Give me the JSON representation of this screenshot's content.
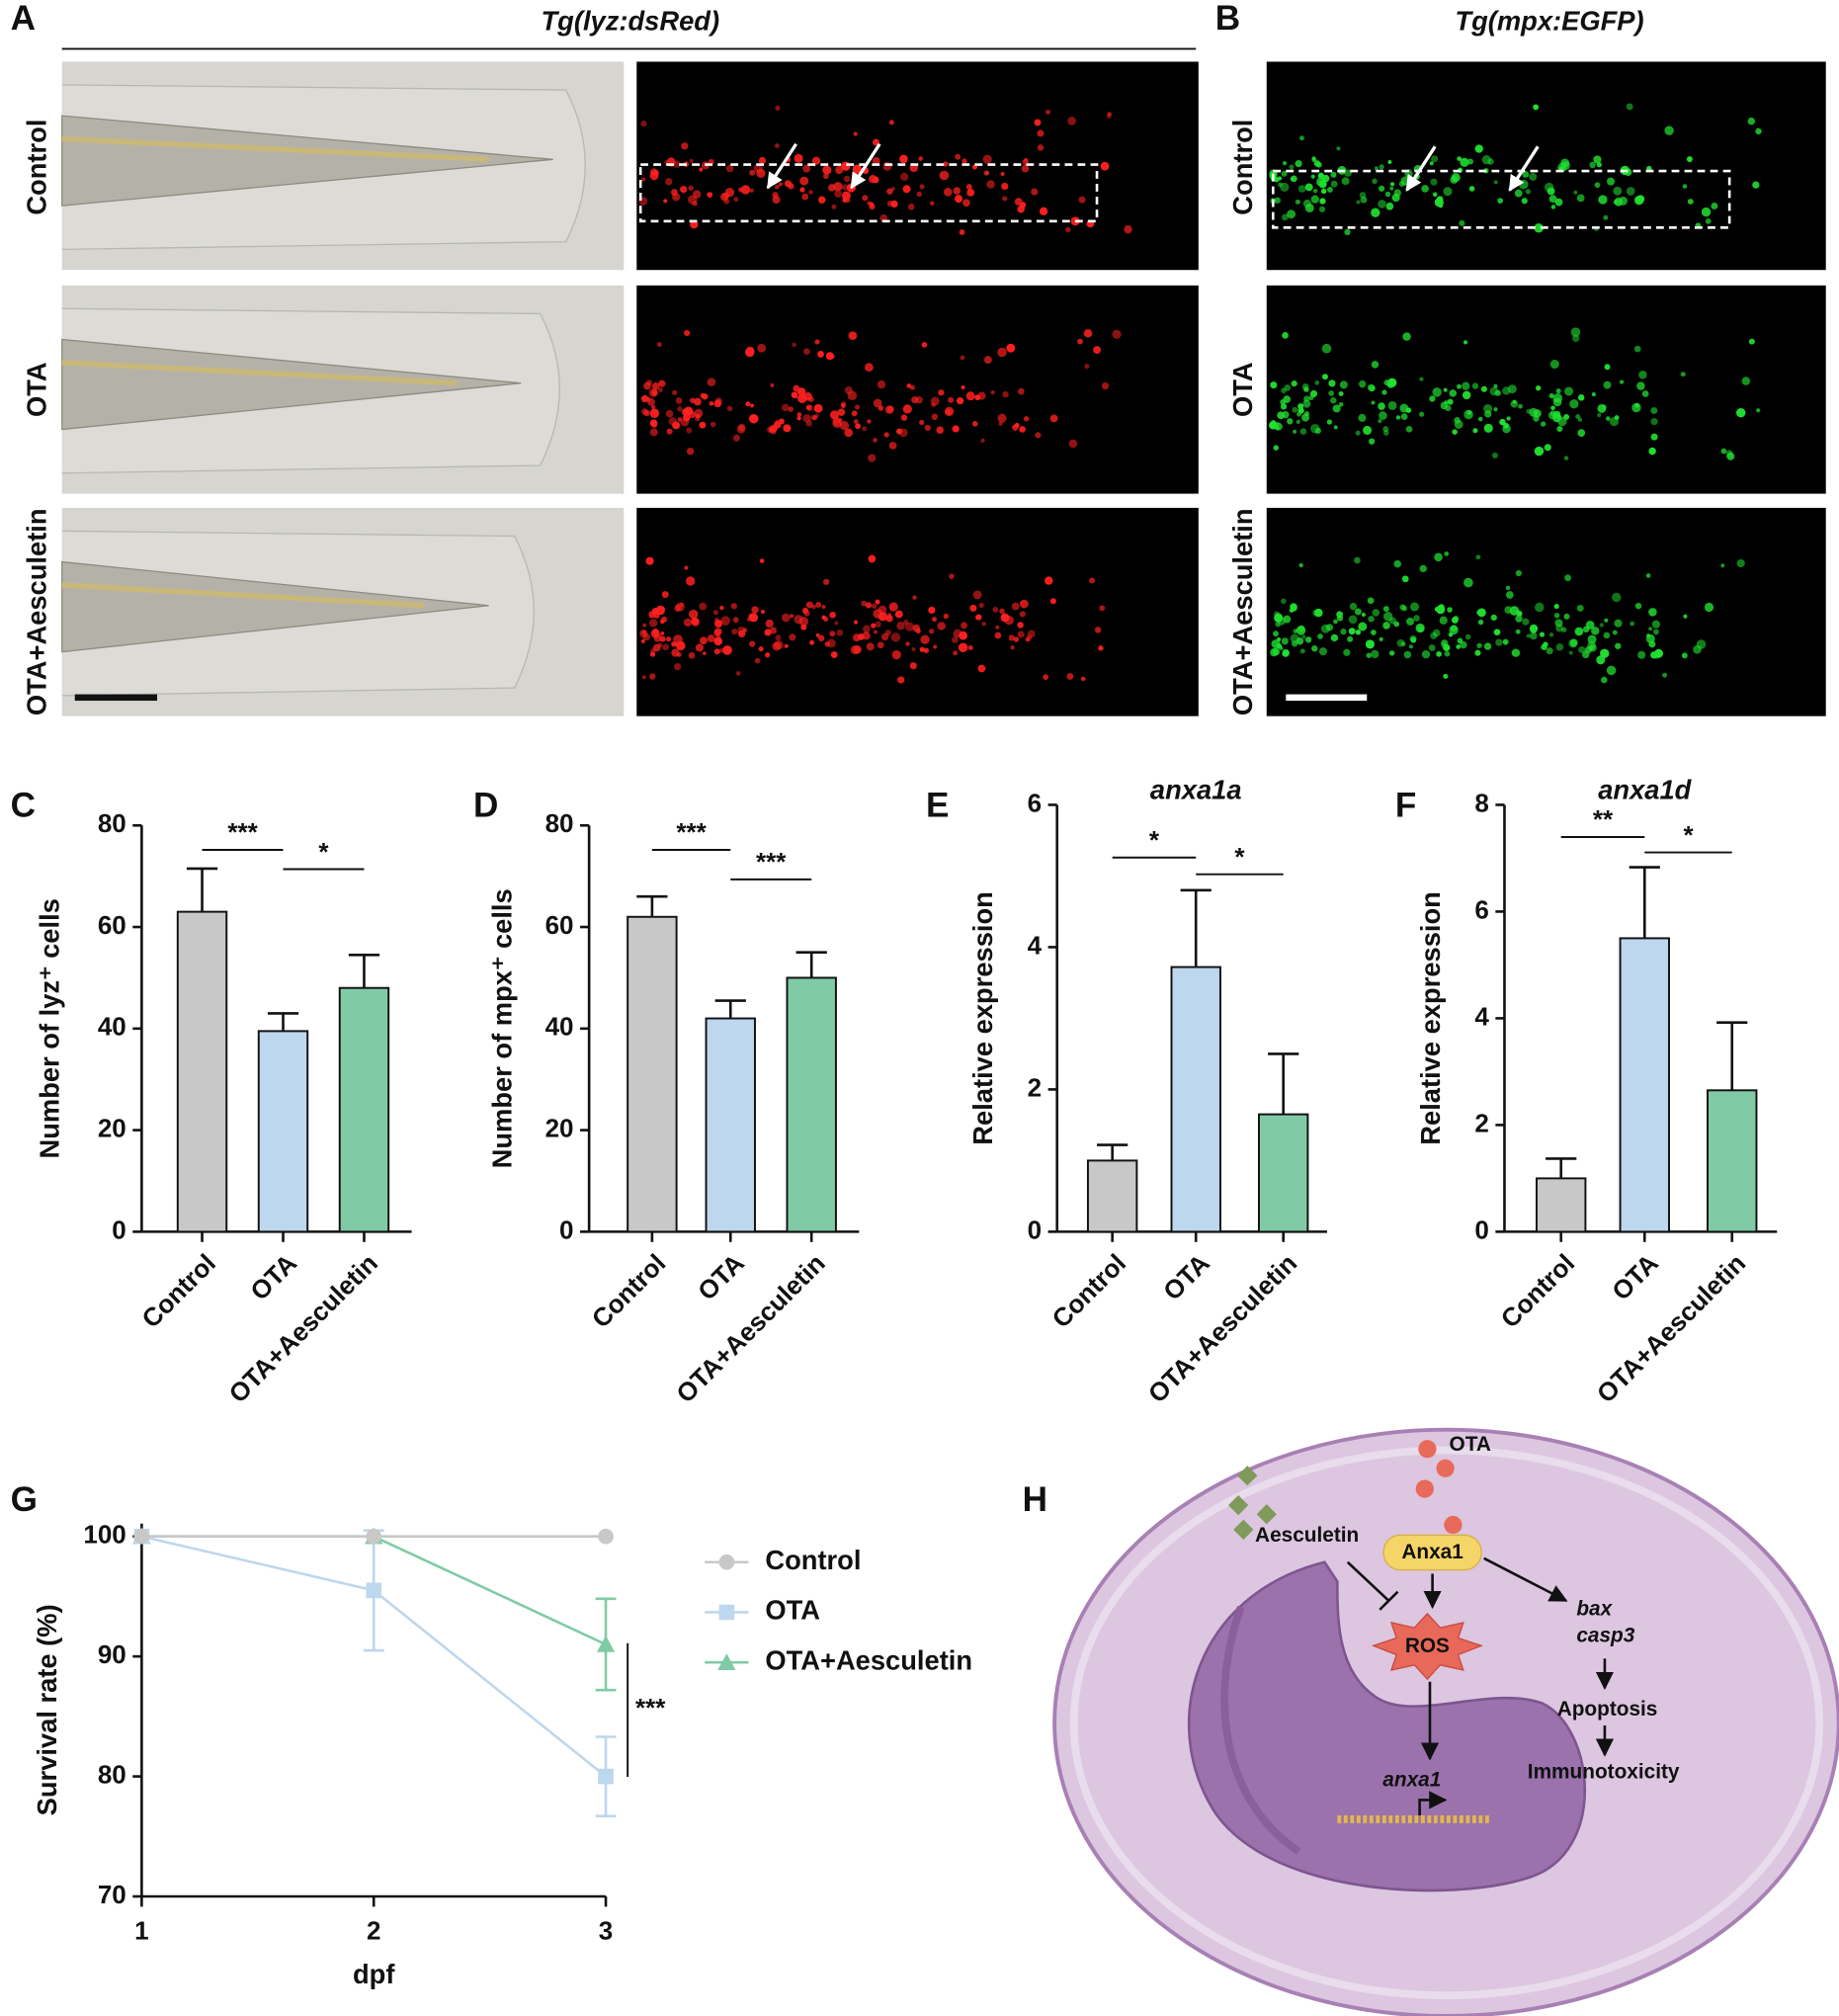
{
  "panel_letters": [
    "A",
    "B",
    "C",
    "D",
    "E",
    "F",
    "G",
    "H"
  ],
  "microscopy": {
    "headers": [
      "Tg(lyz:dsRed)",
      "Tg(mpx:EGFP)"
    ],
    "rows": [
      "Control",
      "OTA",
      "OTA+Aesculetin"
    ]
  },
  "chart_data": [
    {
      "type": "bar",
      "ylabel": "Number of lyz⁺ cells",
      "categories": [
        "Control",
        "OTA",
        "OTA+Aesculetin"
      ],
      "values": [
        63,
        39.5,
        48
      ],
      "errors": [
        8.5,
        3.5,
        6.5
      ],
      "colors": [
        "#c8c8c8",
        "#bdd7ee",
        "#80cba6"
      ],
      "ylim": [
        0,
        80
      ],
      "yticks": [
        0,
        20,
        40,
        60,
        80
      ],
      "significance": [
        "***",
        "*"
      ]
    },
    {
      "type": "bar",
      "ylabel": "Number of mpx⁺ cells",
      "categories": [
        "Control",
        "OTA",
        "OTA+Aesculetin"
      ],
      "values": [
        62,
        42,
        50
      ],
      "errors": [
        4,
        3.5,
        5
      ],
      "colors": [
        "#c8c8c8",
        "#bdd7ee",
        "#80cba6"
      ],
      "ylim": [
        0,
        80
      ],
      "yticks": [
        0,
        20,
        40,
        60,
        80
      ],
      "significance": [
        "***",
        "***"
      ]
    },
    {
      "type": "bar",
      "title": "anxa1a",
      "ylabel": "Relative expression",
      "categories": [
        "Control",
        "OTA",
        "OTA+Aesculetin"
      ],
      "values": [
        1,
        3.72,
        1.65
      ],
      "errors": [
        0.22,
        1.08,
        0.85
      ],
      "colors": [
        "#c8c8c8",
        "#bdd7ee",
        "#80cba6"
      ],
      "ylim": [
        0,
        6
      ],
      "yticks": [
        0,
        2,
        4,
        6
      ],
      "significance": [
        "*",
        "*"
      ]
    },
    {
      "type": "bar",
      "title": "anxa1d",
      "ylabel": "Relative expression",
      "categories": [
        "Control",
        "OTA",
        "OTA+Aesculetin"
      ],
      "values": [
        1,
        5.5,
        2.65
      ],
      "errors": [
        0.37,
        1.33,
        1.27
      ],
      "colors": [
        "#c8c8c8",
        "#bdd7ee",
        "#80cba6"
      ],
      "ylim": [
        0,
        8
      ],
      "yticks": [
        0,
        2,
        4,
        6,
        8
      ],
      "significance": [
        "**",
        "*"
      ]
    },
    {
      "type": "line",
      "xlabel": "dpf",
      "ylabel": "Survival rate (%)",
      "x": [
        1,
        2,
        3
      ],
      "xlim": [
        1,
        3
      ],
      "xticks": [
        1,
        2,
        3
      ],
      "ylim": [
        70,
        100
      ],
      "yticks": [
        70,
        80,
        90,
        100
      ],
      "series": [
        {
          "name": "Control",
          "color": "#c8c8c8",
          "marker": "circle",
          "values": [
            100,
            100,
            100
          ],
          "errors": [
            0,
            0,
            0
          ]
        },
        {
          "name": "OTA",
          "color": "#bdd7ee",
          "marker": "square",
          "values": [
            100,
            95.5,
            80
          ],
          "errors": [
            0,
            5,
            3.3
          ]
        },
        {
          "name": "OTA+Aesculetin",
          "color": "#80cba6",
          "marker": "triangle",
          "values": [
            100,
            100,
            91
          ],
          "errors": [
            0,
            0,
            3.8
          ]
        }
      ],
      "significance": [
        "***"
      ]
    }
  ],
  "diagram": {
    "ota": "OTA",
    "aesculetin": "Aesculetin",
    "anxa1_protein": "Anxa1",
    "ros": "ROS",
    "bax": "bax",
    "casp3": "casp3",
    "apoptosis": "Apoptosis",
    "immunotoxicity": "Immunotoxicity",
    "anxa1_gene": "anxa1"
  }
}
